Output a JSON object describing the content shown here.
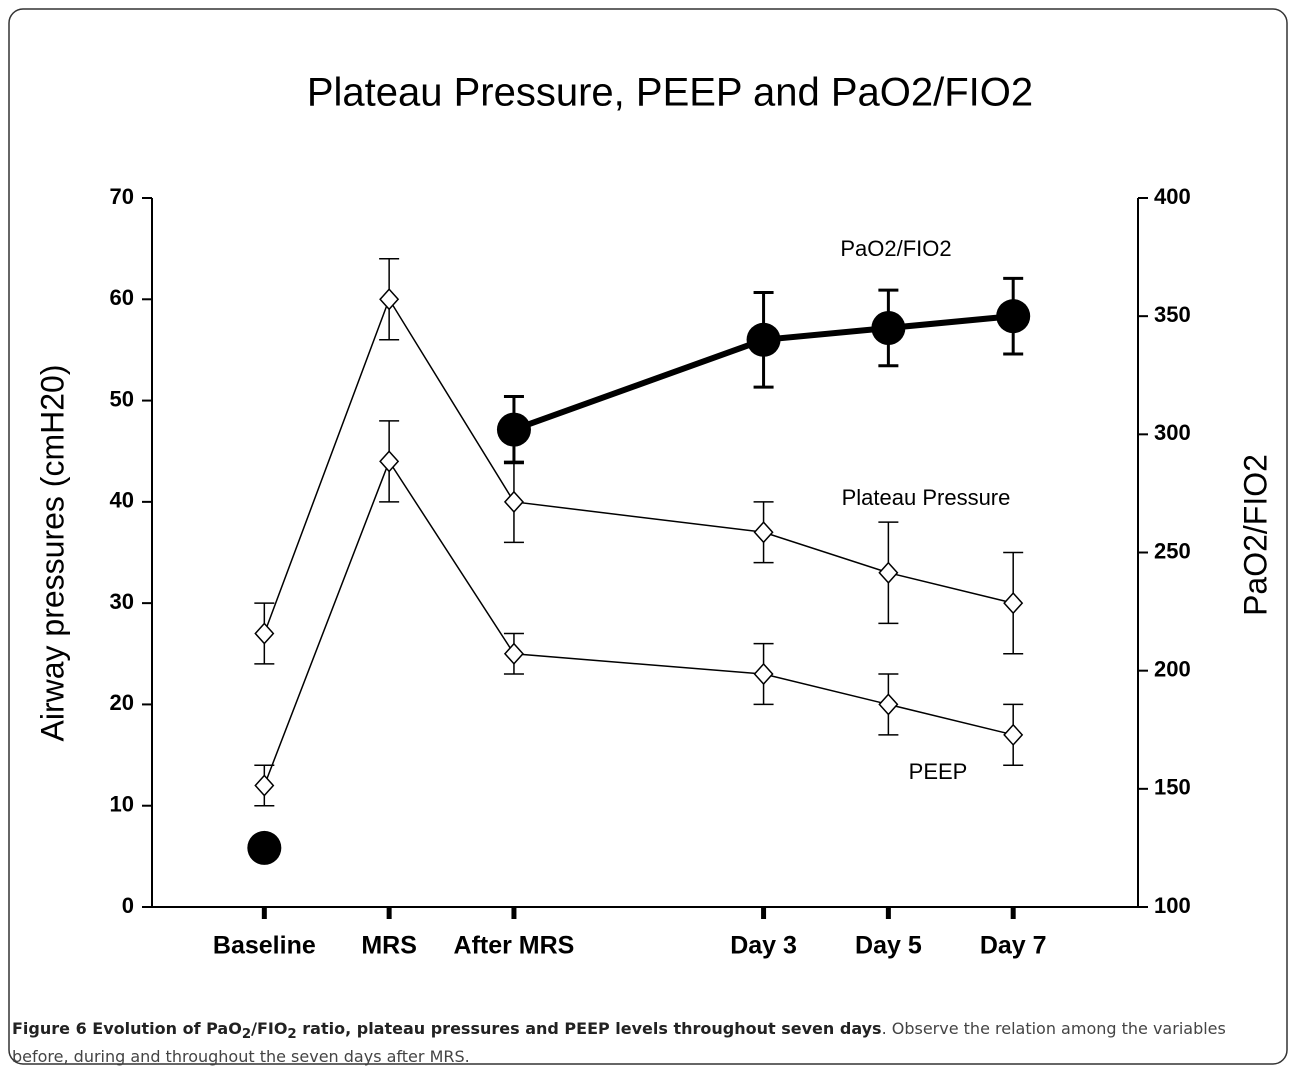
{
  "chart_data": {
    "type": "line",
    "title": "Plateau Pressure, PEEP and PaO2/FIO2",
    "ylabel": "Airway   pressures (cmH20)",
    "y2label": "PaO2/FIO2",
    "x": [
      0,
      1,
      2,
      4,
      5,
      6
    ],
    "xlim": [
      -0.9,
      7
    ],
    "xticks": [
      {
        "value": 0,
        "label": "Baseline"
      },
      {
        "value": 1,
        "label": "MRS"
      },
      {
        "value": 2,
        "label": "After MRS"
      },
      {
        "value": 4,
        "label": "Day 3"
      },
      {
        "value": 5,
        "label": "Day 5"
      },
      {
        "value": 6,
        "label": "Day 7"
      }
    ],
    "ylim": [
      0,
      70
    ],
    "yticks": [
      0,
      10,
      20,
      30,
      40,
      50,
      60,
      70
    ],
    "y2lim": [
      100,
      400
    ],
    "y2ticks": [
      100,
      150,
      200,
      250,
      300,
      350,
      400
    ],
    "series": [
      {
        "name": "Plateau Pressure",
        "color": "#000000",
        "marker": "diamond",
        "values": [
          27,
          60,
          40,
          37,
          33,
          30
        ],
        "errors": [
          3,
          4,
          4,
          3,
          5,
          5
        ]
      },
      {
        "name": "PEEP",
        "color": "#000000",
        "marker": "diamond",
        "values": [
          12,
          44,
          25,
          23,
          20,
          17
        ],
        "errors": [
          2,
          4,
          2,
          3,
          3,
          3
        ]
      },
      {
        "name": "PaO2/FIO2",
        "color": "#000000",
        "marker": "circle",
        "axis": "y2",
        "values": [
          125,
          null,
          302,
          340,
          345,
          350
        ],
        "errors": [
          null,
          null,
          14,
          20,
          16,
          16
        ]
      }
    ],
    "caption": {
      "label": "Figure 6",
      "title_parts": [
        "Evolution of PaO",
        "2",
        "/FIO",
        "2",
        " ratio, plateau pressures and PEEP levels throughout seven days"
      ],
      "text": ". Observe the relation among the variables before, during and throughout the seven days after MRS."
    }
  }
}
